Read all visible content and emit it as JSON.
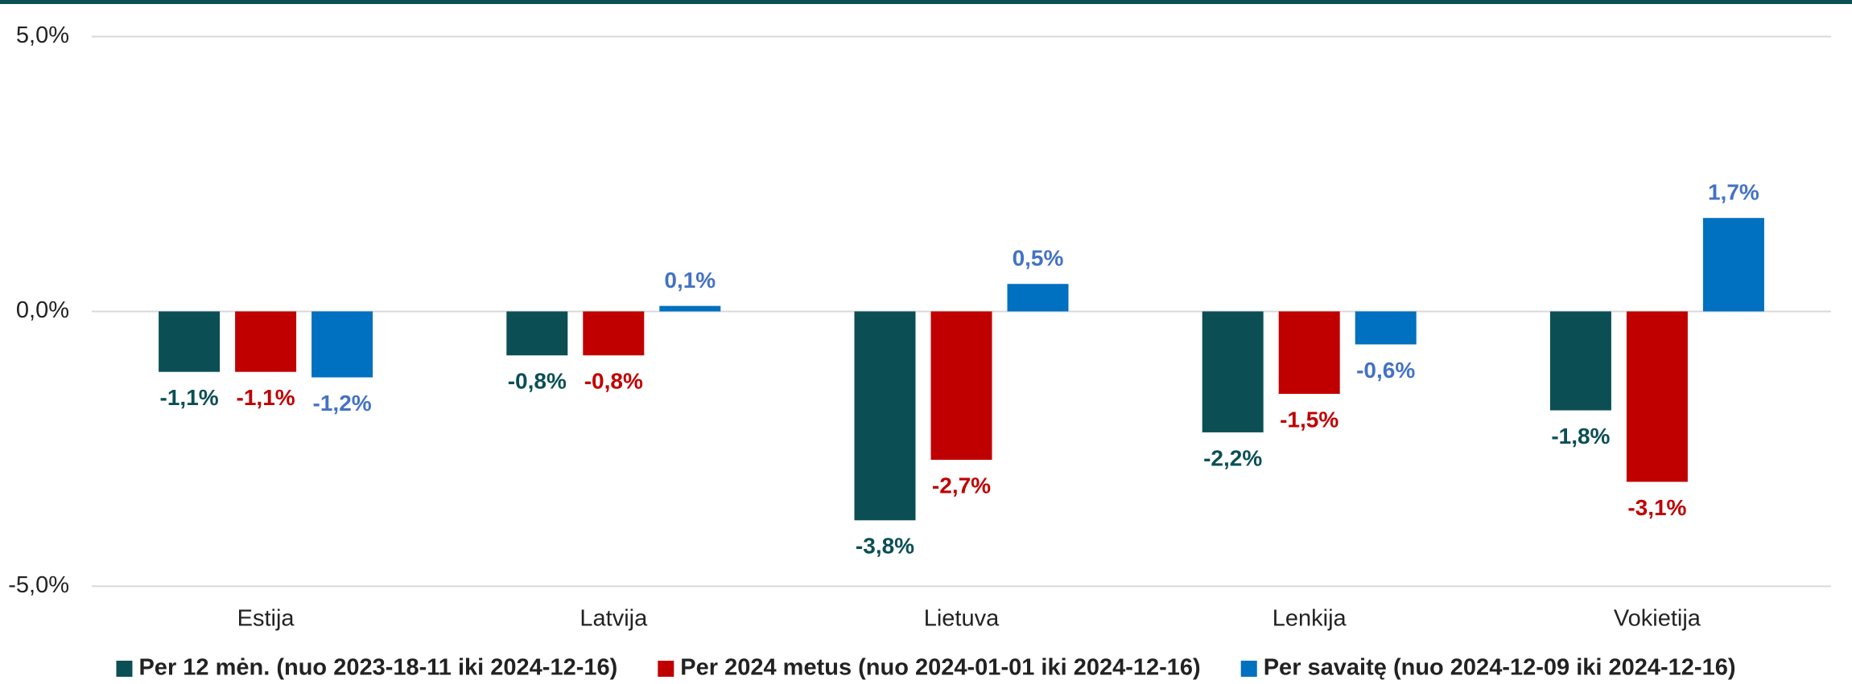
{
  "chart_data": {
    "type": "bar",
    "categories": [
      "Estija",
      "Latvija",
      "Lietuva",
      "Lenkija",
      "Vokietija"
    ],
    "series": [
      {
        "name": "Per 12 mėn. (nuo 2023-18-11 iki 2024-12-16)",
        "color": "#0b4f55",
        "label_color": "#0b4f55",
        "values": [
          -1.1,
          -0.8,
          -3.8,
          -2.2,
          -1.8
        ],
        "value_labels": [
          "-1,1%",
          "-0,8%",
          "-3,8%",
          "-2,2%",
          "-1,8%"
        ]
      },
      {
        "name": "Per 2024 metus (nuo 2024-01-01 iki 2024-12-16)",
        "color": "#c00000",
        "label_color": "#c00000",
        "values": [
          -1.1,
          -0.8,
          -2.7,
          -1.5,
          -3.1
        ],
        "value_labels": [
          "-1,1%",
          "-0,8%",
          "-2,7%",
          "-1,5%",
          "-3,1%"
        ]
      },
      {
        "name": "Per savaitę (nuo 2024-12-09 iki 2024-12-16)",
        "color": "#0070c0",
        "label_color": "#4472c4",
        "values": [
          -1.2,
          0.1,
          0.5,
          -0.6,
          1.7
        ],
        "value_labels": [
          "-1,2%",
          "0,1%",
          "0,5%",
          "-0,6%",
          "1,7%"
        ]
      }
    ],
    "ylim": [
      -5,
      5
    ],
    "yticks": [
      {
        "value": -5,
        "label": "-5,0%"
      },
      {
        "value": 0,
        "label": "0,0%"
      },
      {
        "value": 5,
        "label": "5,0%"
      }
    ],
    "grid": true,
    "legend": "bottom"
  }
}
